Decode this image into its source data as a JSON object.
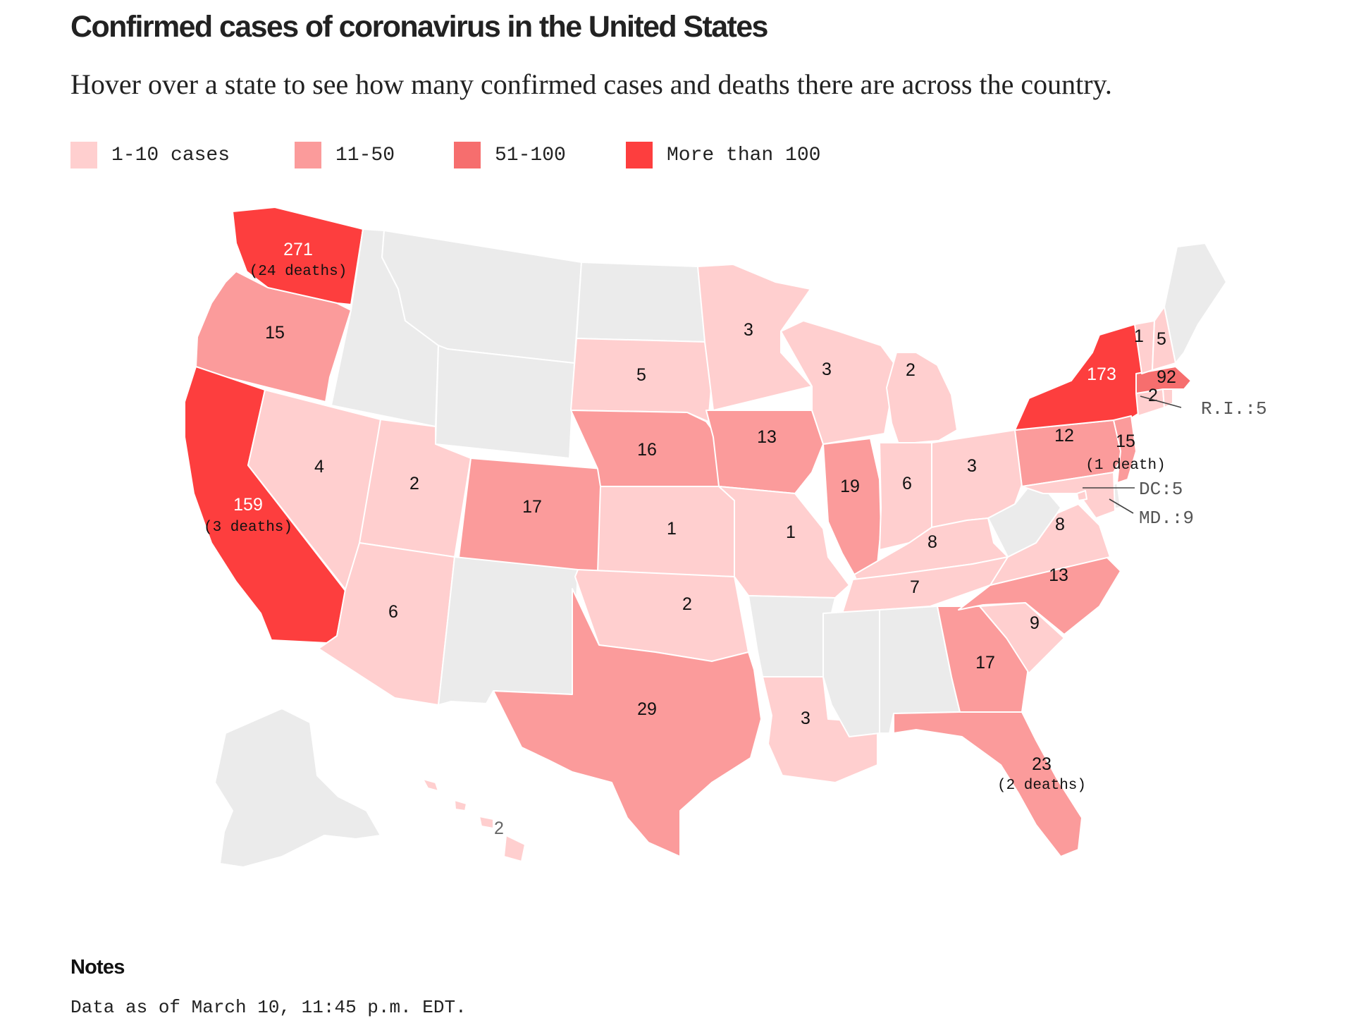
{
  "title": "Confirmed cases of coronavirus in the United States",
  "subtitle": "Hover over a state to see how many confirmed cases and deaths there are across the country.",
  "legend": [
    {
      "label": "1-10 cases",
      "color": "#ffcfcf"
    },
    {
      "label": "11-50",
      "color": "#fb9b9b"
    },
    {
      "label": "51-100",
      "color": "#f66e6e"
    },
    {
      "label": "More than 100",
      "color": "#fd3e3e"
    }
  ],
  "no_data_color": "#ebebeb",
  "states": [
    {
      "code": "WA",
      "cases": "271",
      "deaths": "(24 deaths)"
    },
    {
      "code": "OR",
      "cases": "15"
    },
    {
      "code": "CA",
      "cases": "159",
      "deaths": "(3 deaths)"
    },
    {
      "code": "NV",
      "cases": "4"
    },
    {
      "code": "ID"
    },
    {
      "code": "MT"
    },
    {
      "code": "WY"
    },
    {
      "code": "UT",
      "cases": "2"
    },
    {
      "code": "AZ",
      "cases": "6"
    },
    {
      "code": "CO",
      "cases": "17"
    },
    {
      "code": "NM"
    },
    {
      "code": "ND"
    },
    {
      "code": "SD",
      "cases": "5"
    },
    {
      "code": "NE",
      "cases": "16"
    },
    {
      "code": "KS",
      "cases": "1"
    },
    {
      "code": "OK",
      "cases": "2"
    },
    {
      "code": "TX",
      "cases": "29"
    },
    {
      "code": "MN",
      "cases": "3"
    },
    {
      "code": "IA",
      "cases": "13"
    },
    {
      "code": "MO",
      "cases": "1"
    },
    {
      "code": "AR"
    },
    {
      "code": "LA",
      "cases": "3"
    },
    {
      "code": "WI",
      "cases": "3"
    },
    {
      "code": "IL",
      "cases": "19"
    },
    {
      "code": "MI",
      "cases": "2"
    },
    {
      "code": "IN",
      "cases": "6"
    },
    {
      "code": "OH",
      "cases": "3"
    },
    {
      "code": "KY",
      "cases": "8"
    },
    {
      "code": "TN",
      "cases": "7"
    },
    {
      "code": "MS"
    },
    {
      "code": "AL"
    },
    {
      "code": "GA",
      "cases": "17"
    },
    {
      "code": "FL",
      "cases": "23",
      "deaths": "(2 deaths)"
    },
    {
      "code": "SC",
      "cases": "9"
    },
    {
      "code": "NC",
      "cases": "13"
    },
    {
      "code": "VA",
      "cases": "8"
    },
    {
      "code": "WV"
    },
    {
      "code": "PA",
      "cases": "12"
    },
    {
      "code": "NY",
      "cases": "173"
    },
    {
      "code": "NJ",
      "cases": "15",
      "deaths": "(1 death)"
    },
    {
      "code": "DE"
    },
    {
      "code": "MD",
      "cases": "9"
    },
    {
      "code": "DC",
      "cases": "5"
    },
    {
      "code": "CT",
      "cases": "2"
    },
    {
      "code": "RI",
      "cases": "5"
    },
    {
      "code": "MA",
      "cases": "92"
    },
    {
      "code": "VT",
      "cases": "1"
    },
    {
      "code": "NH",
      "cases": "5"
    },
    {
      "code": "ME"
    },
    {
      "code": "AK"
    },
    {
      "code": "HI",
      "cases": "2"
    }
  ],
  "callouts": {
    "ri": "R.I.:5",
    "dc": "DC:5",
    "md": "MD.:9"
  },
  "notes": {
    "title": "Notes",
    "text": "Data as of March 10, 11:45 p.m. EDT."
  }
}
